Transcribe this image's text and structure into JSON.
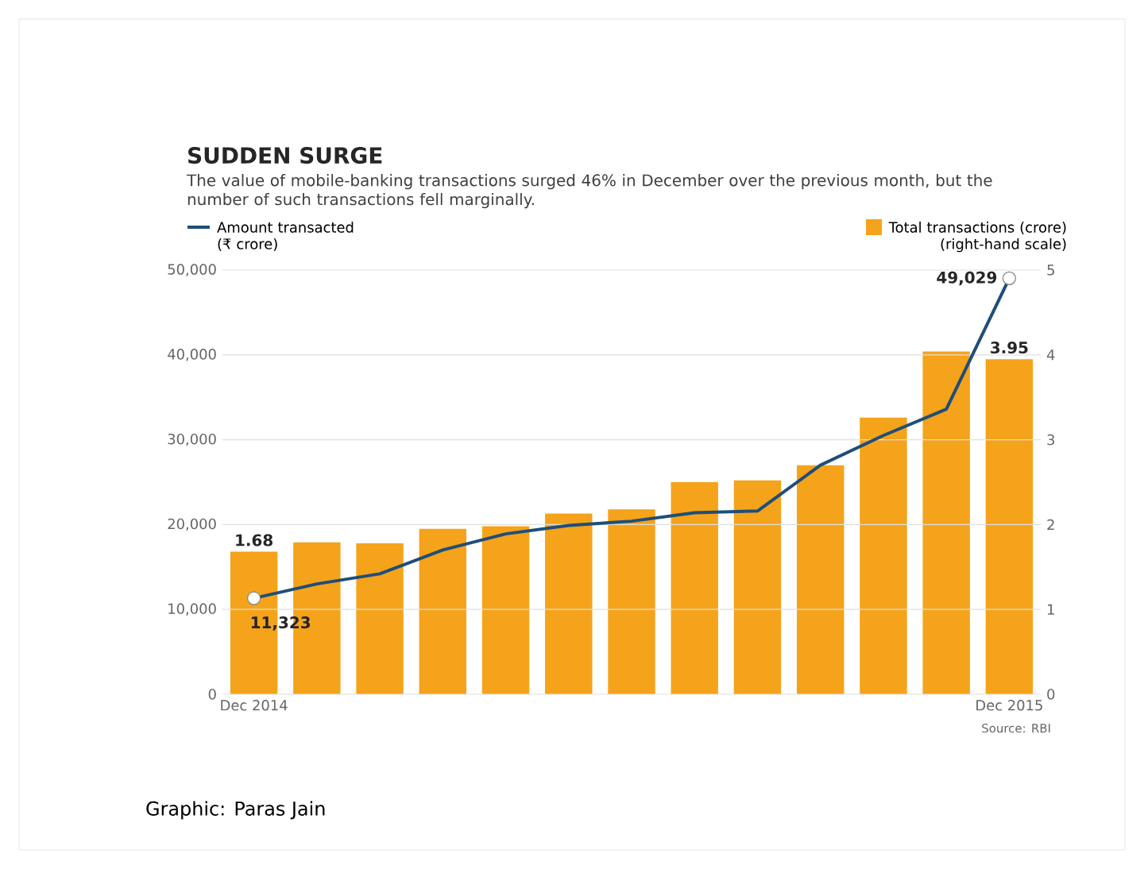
{
  "chart_data": {
    "type": "bar",
    "title": "SUDDEN SURGE",
    "subtitle": "The value of mobile-banking transactions surged 46% in December over the previous month, but the number of such transactions fell marginally.",
    "categories": [
      "Dec 2014",
      null,
      null,
      null,
      null,
      null,
      null,
      null,
      null,
      null,
      null,
      null,
      "Dec 2015"
    ],
    "series": [
      {
        "name": "Amount transacted (₹ crore)",
        "type": "line",
        "color": "#1f4e79",
        "values": [
          11323,
          13000,
          14200,
          17000,
          18900,
          19900,
          20400,
          21400,
          21600,
          27000,
          30500,
          33600,
          49029
        ],
        "value_labels": [
          "11,323",
          null,
          null,
          null,
          null,
          null,
          null,
          null,
          null,
          null,
          null,
          null,
          "49,029"
        ]
      },
      {
        "name": "Total transactions (crore) (right-hand scale)",
        "axis": "y2",
        "color": "#f5a31a",
        "values": [
          1.68,
          1.79,
          1.78,
          1.95,
          1.98,
          2.13,
          2.18,
          2.5,
          2.52,
          2.7,
          3.26,
          4.04,
          3.95
        ],
        "value_labels": [
          "1.68",
          null,
          null,
          null,
          null,
          null,
          null,
          null,
          null,
          null,
          null,
          null,
          "3.95"
        ]
      }
    ],
    "ylim": [
      0,
      50000
    ],
    "yticks": [
      0,
      {
        "value": 10000,
        "label": "10,000"
      },
      {
        "value": 20000,
        "label": "20,000"
      },
      {
        "value": 30000,
        "label": "30,000"
      },
      {
        "value": 40000,
        "label": "40,000"
      },
      {
        "value": 50000,
        "label": "50,000"
      }
    ],
    "y2lim": [
      0,
      5
    ],
    "y2ticks": [
      0,
      1,
      2,
      3,
      4,
      5
    ],
    "grid": "y",
    "legend": "top",
    "annotations": [
      "Source: RBI",
      "Graphic: Paras Jain"
    ]
  }
}
